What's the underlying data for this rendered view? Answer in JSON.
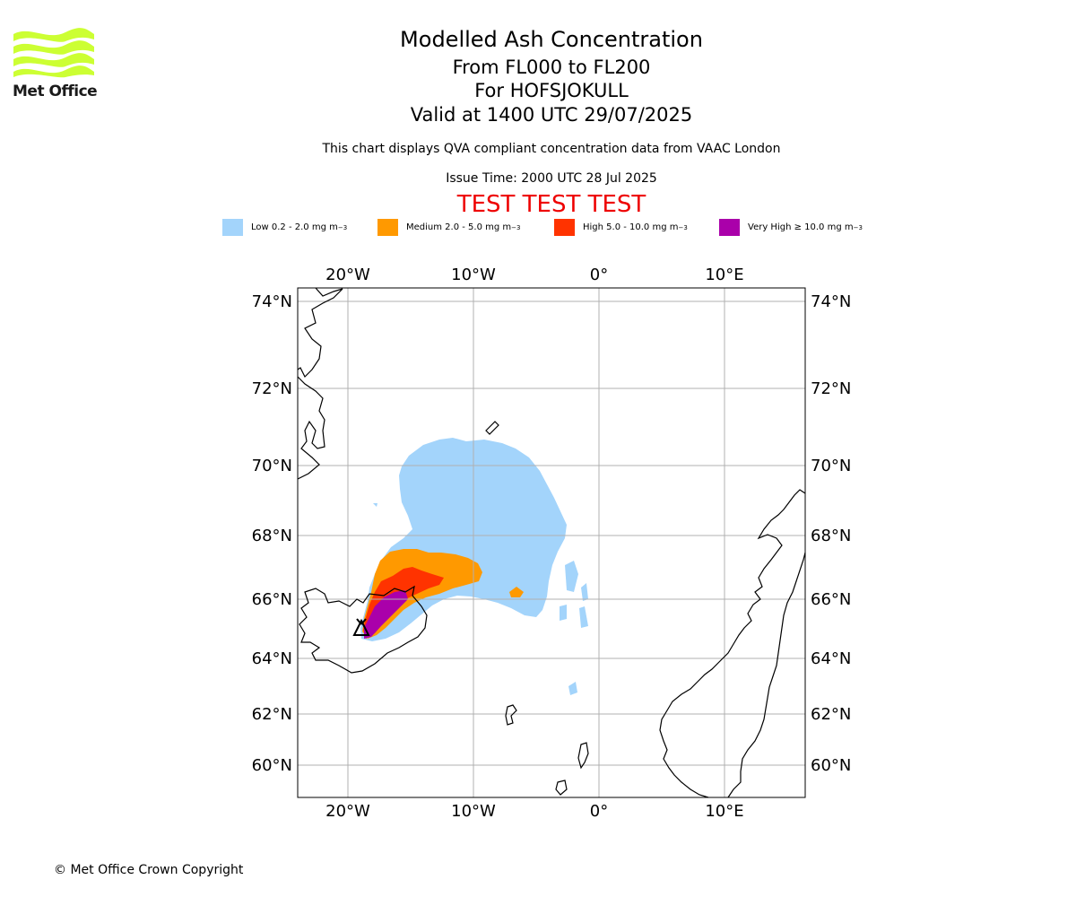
{
  "logo": {
    "text": "Met Office",
    "icon": "met-office-wave-logo",
    "color": "#ccff33"
  },
  "titles": {
    "main": "Modelled Ash Concentration",
    "levels": "From FL000 to FL200",
    "volcano": "For HOFSJOKULL",
    "valid": "Valid at 1400 UTC 29/07/2025"
  },
  "subtitle": "This chart displays QVA compliant concentration data from VAAC London",
  "issue_time": "Issue Time: 2000 UTC 28 Jul 2025",
  "test_banner": "TEST TEST TEST",
  "legend": [
    {
      "label": "Low 0.2 - 2.0 mg m",
      "sup": "−3",
      "color": "#a3d4fb"
    },
    {
      "label": "Medium 2.0 - 5.0 mg m",
      "sup": "−3",
      "color": "#ff9900"
    },
    {
      "label": "High 5.0 - 10.0 mg m",
      "sup": "−3",
      "color": "#ff3300"
    },
    {
      "label": "Very High  ≥  10.0 mg m",
      "sup": "−3",
      "color": "#aa00aa"
    }
  ],
  "map": {
    "lon_labels": [
      "20°W",
      "10°W",
      "0°",
      "10°E"
    ],
    "lat_labels": [
      "74°N",
      "72°N",
      "70°N",
      "68°N",
      "66°N",
      "64°N",
      "62°N",
      "60°N"
    ],
    "grid": true
  },
  "copyright": "© Met Office Crown Copyright"
}
